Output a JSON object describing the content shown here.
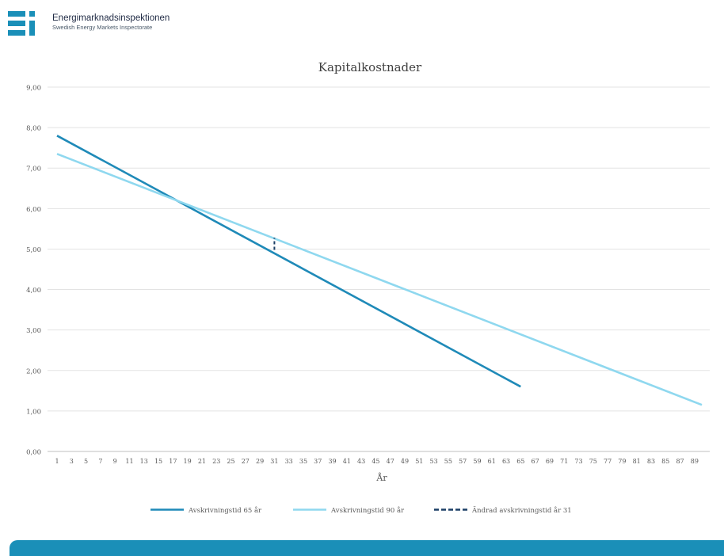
{
  "header": {
    "org_name": "Energimarknadsinspektionen",
    "org_subtitle": "Swedish Energy Markets Inspectorate",
    "logo_text": "Ei"
  },
  "chart_data": {
    "type": "line",
    "title": "Kapitalkostnader",
    "xlabel": "År",
    "ylabel": "",
    "ylim": [
      0,
      9
    ],
    "y_ticks": [
      "0,00",
      "1,00",
      "2,00",
      "3,00",
      "4,00",
      "5,00",
      "6,00",
      "7,00",
      "8,00",
      "9,00"
    ],
    "x_range": [
      1,
      90
    ],
    "x_tick_labels": [
      1,
      3,
      5,
      7,
      9,
      11,
      13,
      15,
      17,
      19,
      21,
      23,
      25,
      27,
      29,
      31,
      33,
      35,
      37,
      39,
      41,
      43,
      45,
      47,
      49,
      51,
      53,
      55,
      57,
      59,
      61,
      63,
      65,
      67,
      69,
      71,
      73,
      75,
      77,
      79,
      81,
      83,
      85,
      87,
      89
    ],
    "grid": true,
    "legend_position": "bottom",
    "series": [
      {
        "name": "Avskrivningstid 65 år",
        "color": "#1f8ab8",
        "style": "solid",
        "x": [
          1,
          65
        ],
        "y": [
          7.8,
          1.6
        ]
      },
      {
        "name": "Avskrivningstid 90 år",
        "color": "#8fd8ef",
        "style": "solid",
        "x": [
          1,
          90
        ],
        "y": [
          7.35,
          1.15
        ]
      },
      {
        "name": "Ändrad avskrivningstid år 31",
        "color": "#1c3f66",
        "style": "dashed",
        "x": [
          31,
          31
        ],
        "y": [
          4.98,
          5.28
        ]
      }
    ]
  }
}
